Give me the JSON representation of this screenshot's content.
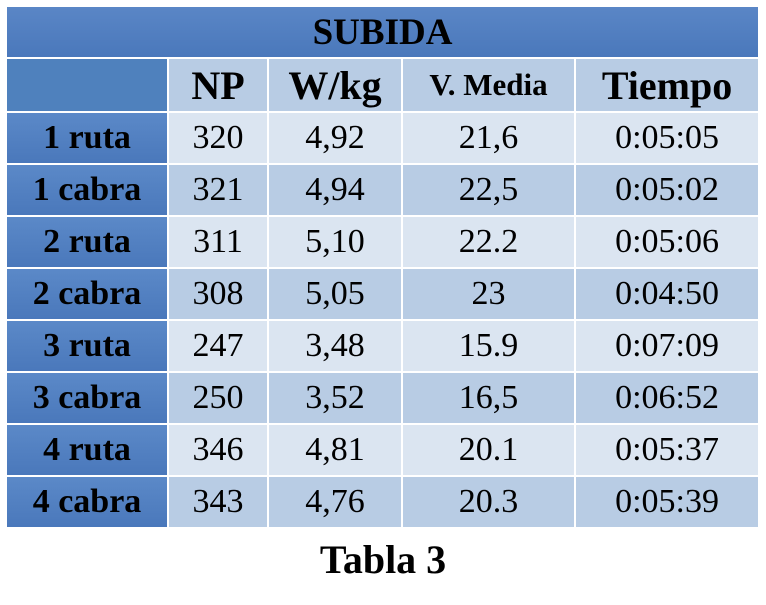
{
  "table": {
    "title": "SUBIDA",
    "headers": [
      "",
      "NP",
      "W/kg",
      "V. Media",
      "Tiempo"
    ],
    "rows": [
      {
        "label": "1 ruta",
        "np": "320",
        "wkg": "4,92",
        "vmedia": "21,6",
        "tiempo": "0:05:05"
      },
      {
        "label": "1 cabra",
        "np": "321",
        "wkg": "4,94",
        "vmedia": "22,5",
        "tiempo": "0:05:02"
      },
      {
        "label": "2 ruta",
        "np": "311",
        "wkg": "5,10",
        "vmedia": "22.2",
        "tiempo": "0:05:06"
      },
      {
        "label": "2 cabra",
        "np": "308",
        "wkg": "5,05",
        "vmedia": "23",
        "tiempo": "0:04:50"
      },
      {
        "label": "3 ruta",
        "np": "247",
        "wkg": "3,48",
        "vmedia": "15.9",
        "tiempo": "0:07:09"
      },
      {
        "label": "3 cabra",
        "np": "250",
        "wkg": "3,52",
        "vmedia": "16,5",
        "tiempo": "0:06:52"
      },
      {
        "label": "4 ruta",
        "np": "346",
        "wkg": "4,81",
        "vmedia": "20.1",
        "tiempo": "0:05:37"
      },
      {
        "label": "4 cabra",
        "np": "343",
        "wkg": "4,76",
        "vmedia": "20.3",
        "tiempo": "0:05:39"
      }
    ],
    "caption": "Tabla 3"
  },
  "colors": {
    "header_dark": "#4f81bd",
    "row_light": "#dbe5f1",
    "row_mid": "#b8cce4"
  }
}
